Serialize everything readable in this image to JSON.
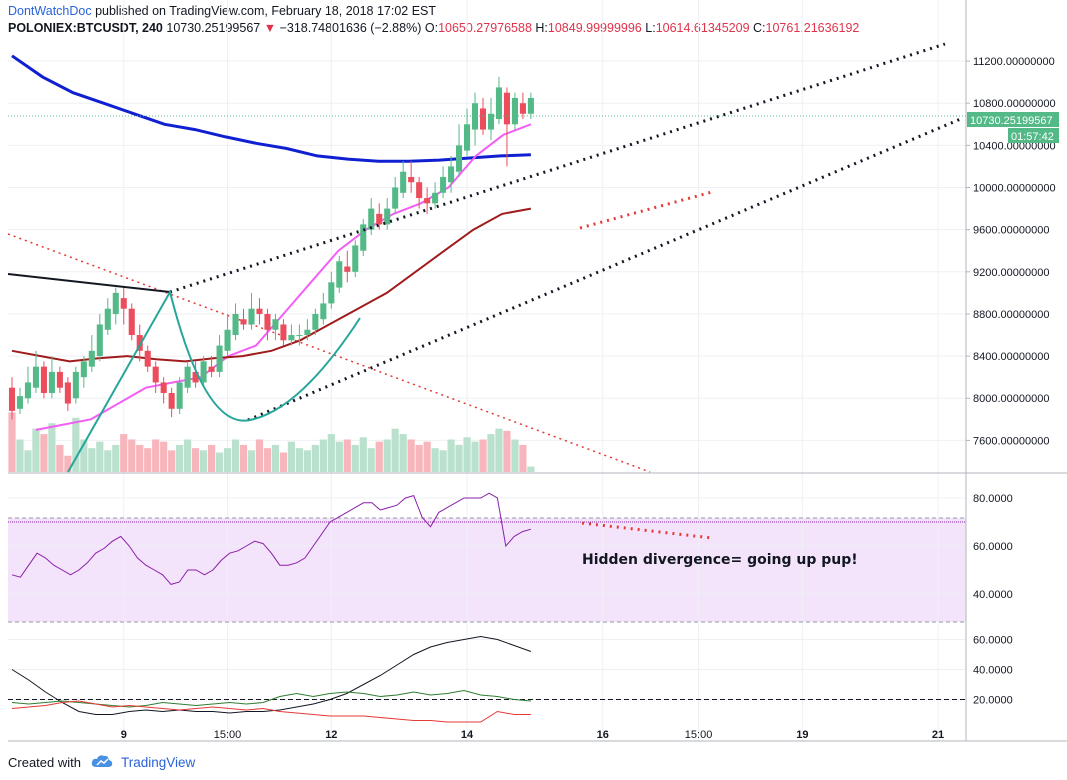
{
  "header": {
    "author": "DontWatchDoc",
    "published_text": "published on TradingView.com, February 18, 2018 17:02 EST",
    "symbol": "POLONIEX:BTCUSDT, 240",
    "price": "10730.25199567",
    "change": "−318.74801636 (−2.88%)",
    "open_label": "O:",
    "open": "10650.27976588",
    "high_label": "H:",
    "high": "10849.99999996",
    "low_label": "L:",
    "low": "10614.61345209",
    "close_label": "C:",
    "close": "10761.21636192"
  },
  "price_tag": "10730.25199567",
  "countdown_tag": "01:57:42",
  "annotation": "Hidden divergence= going up pup!",
  "footer": {
    "created_with": "Created with",
    "brand": "TradingView"
  },
  "colors": {
    "up": "#53b987",
    "down": "#eb4d5c",
    "ma_blue": "#1020d0",
    "ma_pink": "#f35ef5",
    "ma_darkred": "#a01c1c",
    "rsi": "#8b1fa9",
    "tag_green": "#53b987"
  },
  "chart_data": [
    {
      "type": "candlestick",
      "ylim": [
        7300,
        11400
      ],
      "price_ticks": [
        "11200.00000000",
        "10800.00000000",
        "10400.00000000",
        "10000.00000000",
        "9600.00000000",
        "9200.00000000",
        "8800.00000000",
        "8400.00000000",
        "8000.00000000",
        "7600.00000000"
      ],
      "price_tick_values": [
        11200,
        10800,
        10400,
        10000,
        9600,
        9200,
        8800,
        8400,
        8000,
        7600
      ],
      "x_ticks": [
        {
          "label": "9",
          "i": 14
        },
        {
          "label": "15:00",
          "i": 27
        },
        {
          "label": "12",
          "i": 40
        },
        {
          "label": "14",
          "i": 57
        },
        {
          "label": "16",
          "i": 74
        },
        {
          "label": "15:00",
          "i": 86
        },
        {
          "label": "19",
          "i": 99
        },
        {
          "label": "21",
          "i": 116
        }
      ],
      "bar_count_span": 120,
      "candles": [
        [
          8100,
          7880,
          8200,
          7800
        ],
        [
          7900,
          8020,
          8100,
          7850
        ],
        [
          8000,
          8150,
          8300,
          7950
        ],
        [
          8100,
          8300,
          8450,
          8050
        ],
        [
          8300,
          8050,
          8350,
          8000
        ],
        [
          8050,
          8250,
          8400,
          8000
        ],
        [
          8250,
          8100,
          8300,
          8050
        ],
        [
          8150,
          7950,
          8200,
          7880
        ],
        [
          8000,
          8250,
          8300,
          7950
        ],
        [
          8200,
          8350,
          8400,
          8100
        ],
        [
          8300,
          8450,
          8600,
          8250
        ],
        [
          8400,
          8700,
          8800,
          8350
        ],
        [
          8650,
          8850,
          8950,
          8600
        ],
        [
          8800,
          9000,
          9050,
          8700
        ],
        [
          8950,
          8850,
          9050,
          8700
        ],
        [
          8850,
          8600,
          8900,
          8550
        ],
        [
          8600,
          8450,
          8700,
          8350
        ],
        [
          8450,
          8300,
          8500,
          8250
        ],
        [
          8300,
          8150,
          8350,
          8050
        ],
        [
          8150,
          8050,
          8200,
          7950
        ],
        [
          8050,
          7900,
          8100,
          7820
        ],
        [
          7900,
          8150,
          8200,
          7850
        ],
        [
          8100,
          8300,
          8350,
          8050
        ],
        [
          8250,
          8150,
          8350,
          8100
        ],
        [
          8150,
          8350,
          8400,
          8100
        ],
        [
          8300,
          8250,
          8400,
          8200
        ],
        [
          8250,
          8500,
          8600,
          8200
        ],
        [
          8450,
          8650,
          8800,
          8400
        ],
        [
          8600,
          8800,
          8900,
          8550
        ],
        [
          8750,
          8700,
          8850,
          8650
        ],
        [
          8700,
          8850,
          9000,
          8650
        ],
        [
          8850,
          8800,
          8950,
          8700
        ],
        [
          8800,
          8650,
          8850,
          8550
        ],
        [
          8650,
          8750,
          8800,
          8550
        ],
        [
          8700,
          8550,
          8750,
          8500
        ],
        [
          8550,
          8600,
          8700,
          8500
        ],
        [
          8600,
          8600,
          8700,
          8500
        ],
        [
          8600,
          8650,
          8750,
          8550
        ],
        [
          8650,
          8800,
          8850,
          8600
        ],
        [
          8750,
          8900,
          9000,
          8700
        ],
        [
          8900,
          9100,
          9200,
          8850
        ],
        [
          9050,
          9300,
          9350,
          9000
        ],
        [
          9250,
          9200,
          9400,
          9100
        ],
        [
          9200,
          9450,
          9500,
          9150
        ],
        [
          9400,
          9650,
          9700,
          9350
        ],
        [
          9600,
          9800,
          9900,
          9550
        ],
        [
          9750,
          9650,
          9850,
          9600
        ],
        [
          9650,
          9800,
          9900,
          9600
        ],
        [
          9800,
          10000,
          10100,
          9750
        ],
        [
          9950,
          10150,
          10250,
          9900
        ],
        [
          10100,
          10050,
          10250,
          9950
        ],
        [
          10050,
          9900,
          10100,
          9800
        ],
        [
          9900,
          9850,
          10000,
          9750
        ],
        [
          9850,
          9950,
          10050,
          9800
        ],
        [
          9950,
          10100,
          10200,
          9900
        ],
        [
          10050,
          10200,
          10300,
          9950
        ],
        [
          10150,
          10400,
          10600,
          10100
        ],
        [
          10350,
          10600,
          10750,
          10300
        ],
        [
          10550,
          10800,
          10900,
          10400
        ],
        [
          10750,
          10550,
          10850,
          10500
        ],
        [
          10550,
          10700,
          10850,
          10450
        ],
        [
          10650,
          10950,
          11050,
          10600
        ],
        [
          10900,
          10600,
          10950,
          10200
        ],
        [
          10600,
          10850,
          10900,
          10550
        ],
        [
          10800,
          10700,
          10900,
          10650
        ],
        [
          10700,
          10850,
          10900,
          10650
        ]
      ],
      "volume": [
        55,
        30,
        20,
        40,
        35,
        45,
        25,
        15,
        50,
        30,
        22,
        28,
        20,
        25,
        35,
        30,
        25,
        22,
        30,
        28,
        20,
        25,
        30,
        22,
        20,
        25,
        18,
        22,
        30,
        25,
        20,
        30,
        22,
        25,
        18,
        28,
        22,
        20,
        25,
        30,
        35,
        28,
        30,
        25,
        32,
        22,
        28,
        30,
        40,
        35,
        30,
        25,
        28,
        22,
        20,
        30,
        25,
        32,
        28,
        30,
        35,
        40,
        38,
        30,
        25,
        5
      ],
      "moving_averages": [
        {
          "name": "MA blue",
          "values": [
            11250,
            11050,
            10900,
            10800,
            10700,
            10600,
            10550,
            10480,
            10420,
            10370,
            10300,
            10270,
            10250,
            10250,
            10260,
            10280,
            10300,
            10310
          ]
        },
        {
          "name": "MA pink",
          "values": [
            7700,
            7750,
            7800,
            7950,
            8100,
            8150,
            8200,
            8400,
            8500,
            8800,
            9100,
            9400,
            9600,
            9750,
            9850,
            10000,
            10300,
            10500,
            10600
          ]
        },
        {
          "name": "MA darkred",
          "values": [
            8450,
            8400,
            8350,
            8380,
            8400,
            8370,
            8350,
            8380,
            8400,
            8450,
            8550,
            8700,
            8850,
            9000,
            9200,
            9400,
            9600,
            9750,
            9800
          ]
        }
      ]
    },
    {
      "type": "line",
      "name": "RSI",
      "ylim": [
        25,
        90
      ],
      "ticks": [
        "80.0000",
        "60.0000",
        "40.0000"
      ],
      "tick_values": [
        80,
        60,
        40
      ],
      "levels": [
        70,
        30
      ],
      "values": [
        48,
        47,
        52,
        57,
        55,
        52,
        50,
        48,
        50,
        53,
        57,
        59,
        62,
        64,
        60,
        55,
        52,
        50,
        48,
        44,
        45,
        50,
        50,
        48,
        50,
        54,
        57,
        58,
        60,
        62,
        61,
        57,
        52,
        52,
        53,
        55,
        60,
        65,
        70,
        72,
        74,
        76,
        78,
        78,
        75,
        76,
        77,
        80,
        81,
        72,
        68,
        74,
        76,
        78,
        80,
        80,
        80,
        82,
        80,
        60,
        64,
        66,
        67
      ]
    },
    {
      "type": "line",
      "name": "DMI",
      "ylim": [
        5,
        65
      ],
      "ticks": [
        "60.0000",
        "40.0000",
        "20.0000"
      ],
      "tick_values": [
        60,
        40,
        20
      ],
      "reference": 20,
      "series": [
        {
          "name": "black",
          "values": [
            40,
            33,
            25,
            18,
            12,
            10,
            10,
            12,
            13,
            12,
            13,
            12,
            12,
            11,
            12,
            12,
            13,
            15,
            17,
            20,
            24,
            30,
            36,
            43,
            50,
            55,
            58,
            60,
            62,
            60,
            56,
            52
          ]
        },
        {
          "name": "green",
          "values": [
            18,
            17,
            18,
            19,
            18,
            17,
            16,
            15,
            16,
            18,
            17,
            16,
            17,
            18,
            17,
            18,
            22,
            24,
            22,
            24,
            25,
            24,
            22,
            23,
            25,
            23,
            24,
            26,
            23,
            22,
            20,
            19
          ]
        },
        {
          "name": "red",
          "values": [
            14,
            15,
            16,
            18,
            19,
            17,
            15,
            16,
            15,
            14,
            13,
            14,
            15,
            14,
            13,
            14,
            12,
            11,
            10,
            9,
            9,
            9,
            8,
            7,
            6,
            6,
            5,
            5,
            5,
            12,
            10,
            10
          ]
        }
      ]
    }
  ]
}
